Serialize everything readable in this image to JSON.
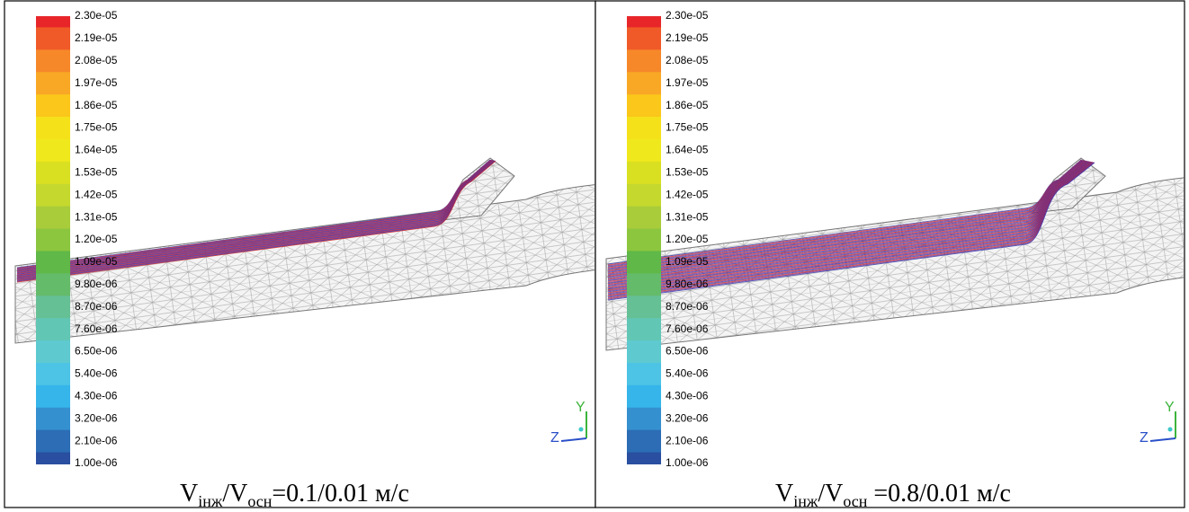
{
  "panels": [
    {
      "legend_labels": [
        "2.30e-05",
        "2.19e-05",
        "2.08e-05",
        "1.97e-05",
        "1.86e-05",
        "1.75e-05",
        "1.64e-05",
        "1.53e-05",
        "1.42e-05",
        "1.31e-05",
        "1.20e-05",
        "1.09e-05",
        "9.80e-06",
        "8.70e-06",
        "7.60e-06",
        "6.50e-06",
        "5.40e-06",
        "4.30e-06",
        "3.20e-06",
        "2.10e-06",
        "1.00e-06"
      ],
      "axis_labels": [
        "Y",
        "Z"
      ],
      "caption": {
        "v1": "V",
        "sub1": "інж",
        "v2": "/V",
        "sub2": "осн",
        "rest": "=0.1/0.01 м/с"
      }
    },
    {
      "legend_labels": [
        "2.30e-05",
        "2.19e-05",
        "2.08e-05",
        "1.97e-05",
        "1.86e-05",
        "1.75e-05",
        "1.64e-05",
        "1.53e-05",
        "1.42e-05",
        "1.31e-05",
        "1.20e-05",
        "1.09e-05",
        "9.80e-06",
        "8.70e-06",
        "7.60e-06",
        "6.50e-06",
        "5.40e-06",
        "4.30e-06",
        "3.20e-06",
        "2.10e-06",
        "1.00e-06"
      ],
      "axis_labels": [
        "Y",
        "Z"
      ],
      "caption": {
        "v1": "V",
        "sub1": "інж",
        "v2": "/V",
        "sub2": "осн",
        "rest": " =0.8/0.01 м/с"
      }
    }
  ]
}
